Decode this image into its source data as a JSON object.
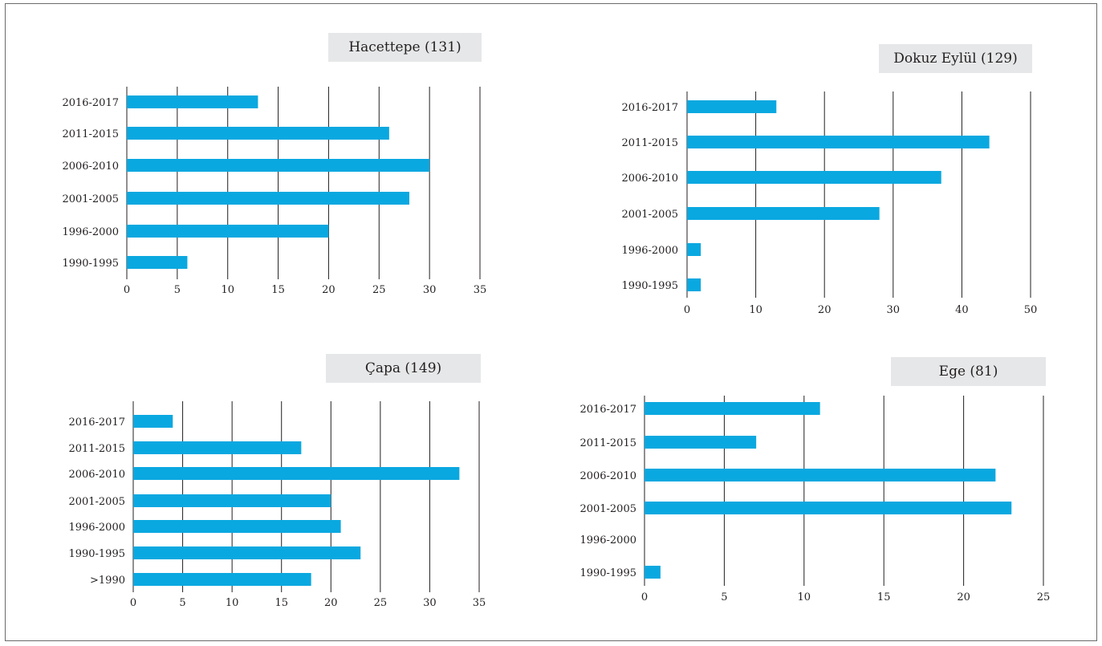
{
  "style": {
    "bar_color": "#0aa8e0",
    "grid_color": "#231f20",
    "title_bg": "#e6e7e8"
  },
  "chart_data": [
    {
      "type": "bar",
      "orientation": "horizontal",
      "title": "Hacettepe (131)",
      "categories": [
        "2016-2017",
        "2011-2015",
        "2006-2010",
        "2001-2005",
        "1996-2000",
        "1990-1995"
      ],
      "values": [
        13,
        26,
        30,
        28,
        20,
        6
      ],
      "xticks": [
        "0",
        "5",
        "10",
        "15",
        "20",
        "25",
        "30",
        "35"
      ],
      "xlim": [
        0,
        35
      ],
      "grid": true
    },
    {
      "type": "bar",
      "orientation": "horizontal",
      "title": "Dokuz Eylül (129)",
      "categories": [
        "2016-2017",
        "2011-2015",
        "2006-2010",
        "2001-2005",
        "1996-2000",
        "1990-1995"
      ],
      "values": [
        13,
        44,
        37,
        28,
        2,
        2
      ],
      "xticks": [
        "0",
        "10",
        "20",
        "30",
        "40",
        "50"
      ],
      "xlim": [
        0,
        50
      ],
      "grid": true
    },
    {
      "type": "bar",
      "orientation": "horizontal",
      "title": "Çapa (149)",
      "categories": [
        "2016-2017",
        "2011-2015",
        "2006-2010",
        "2001-2005",
        "1996-2000",
        "1990-1995",
        ">1990"
      ],
      "values": [
        4,
        17,
        33,
        20,
        21,
        23,
        18
      ],
      "xticks": [
        "0",
        "5",
        "10",
        "15",
        "20",
        "25",
        "30",
        "35"
      ],
      "xlim": [
        0,
        35
      ],
      "grid": true
    },
    {
      "type": "bar",
      "orientation": "horizontal",
      "title": "Ege (81)",
      "categories": [
        "2016-2017",
        "2011-2015",
        "2006-2010",
        "2001-2005",
        "1996-2000",
        "1990-1995"
      ],
      "values": [
        11,
        7,
        22,
        23,
        0,
        1
      ],
      "xticks": [
        "0",
        "5",
        "10",
        "15",
        "20",
        "25"
      ],
      "xlim": [
        0,
        25
      ],
      "grid": true
    }
  ]
}
